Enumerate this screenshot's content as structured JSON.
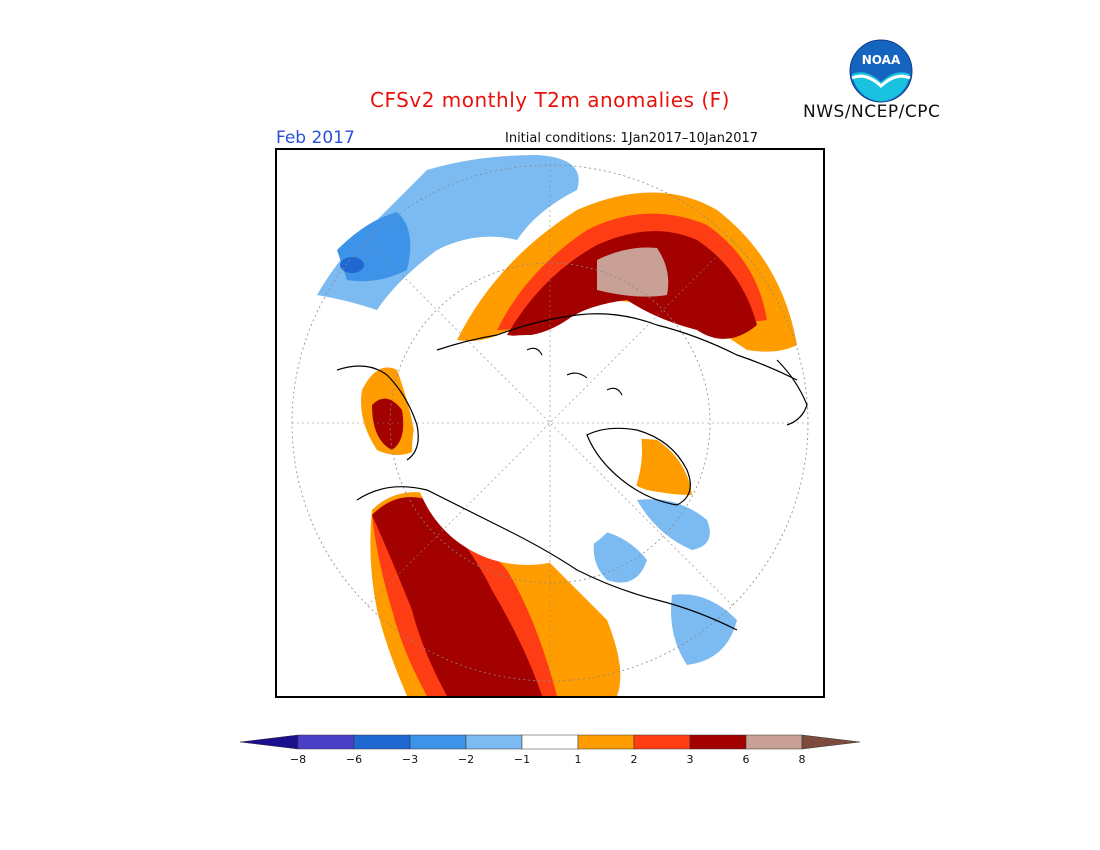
{
  "header": {
    "title": "CFSv2 monthly T2m anomalies (F)",
    "agency": "NWS/NCEP/CPC",
    "logo_text": "NOAA",
    "month": "Feb 2017",
    "initial_conditions": "Initial conditions: 1Jan2017–10Jan2017"
  },
  "map": {
    "projection": "north polar stereographic"
  },
  "colorbar": {
    "tick_labels": [
      "−8",
      "−6",
      "−3",
      "−2",
      "−1",
      "1",
      "2",
      "3",
      "6",
      "8"
    ],
    "colors": [
      "#1a0f8c",
      "#4b3fc8",
      "#1f68d2",
      "#3d93e8",
      "#7cbaf2",
      "#ffffff",
      "#ff9c00",
      "#ff3d14",
      "#a30000",
      "#c8a096",
      "#7d4b3c"
    ]
  },
  "colors": {
    "title": "#e8120c",
    "month": "#2a4fd8"
  }
}
